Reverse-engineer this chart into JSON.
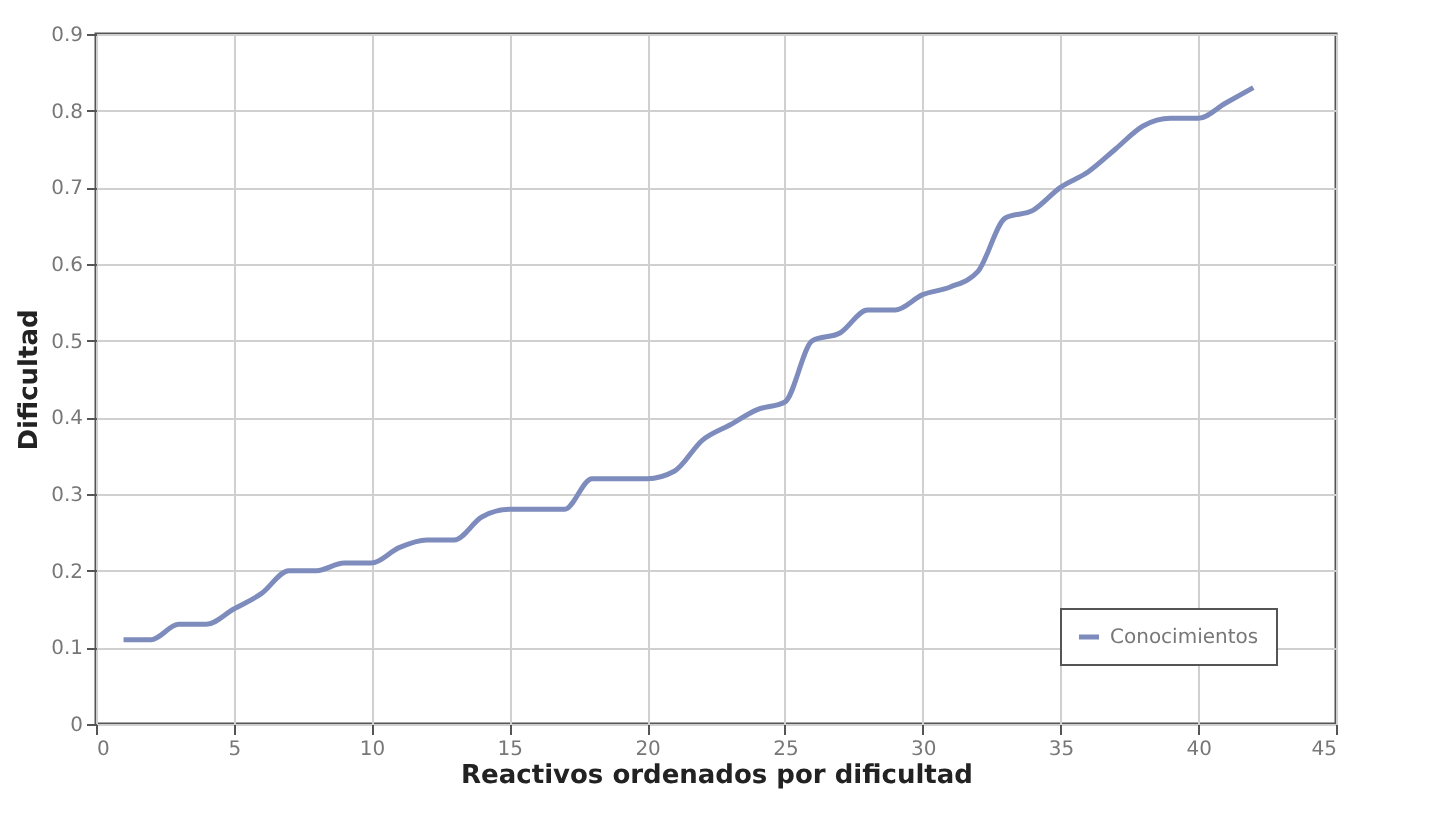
{
  "chart_data": {
    "type": "line",
    "xlabel": "Reactivos ordenados por dificultad",
    "ylabel": "Dificultad",
    "x": [
      1,
      2,
      3,
      4,
      5,
      6,
      7,
      8,
      9,
      10,
      11,
      12,
      13,
      14,
      15,
      16,
      17,
      18,
      19,
      20,
      21,
      22,
      23,
      24,
      25,
      26,
      27,
      28,
      29,
      30,
      31,
      32,
      33,
      34,
      35,
      36,
      37,
      38,
      39,
      40,
      41,
      42
    ],
    "series": [
      {
        "name": "Conocimientos",
        "color": "#7d8cbc",
        "values": [
          0.11,
          0.11,
          0.13,
          0.13,
          0.15,
          0.17,
          0.2,
          0.2,
          0.21,
          0.21,
          0.23,
          0.24,
          0.24,
          0.27,
          0.28,
          0.28,
          0.28,
          0.32,
          0.32,
          0.32,
          0.33,
          0.37,
          0.39,
          0.41,
          0.42,
          0.5,
          0.51,
          0.54,
          0.54,
          0.56,
          0.57,
          0.59,
          0.66,
          0.67,
          0.7,
          0.72,
          0.75,
          0.78,
          0.79,
          0.79,
          0.81,
          0.83
        ]
      }
    ],
    "xlim": [
      0,
      45
    ],
    "xticks": [
      0,
      5,
      10,
      15,
      20,
      25,
      30,
      35,
      40,
      45
    ],
    "ylim": [
      0,
      0.9
    ],
    "yticks": [
      0,
      0.1,
      0.2,
      0.3,
      0.4,
      0.5,
      0.6,
      0.7,
      0.8,
      0.9
    ],
    "grid": true,
    "legend": "bottom right",
    "marker": "none",
    "line_style": "solid"
  }
}
